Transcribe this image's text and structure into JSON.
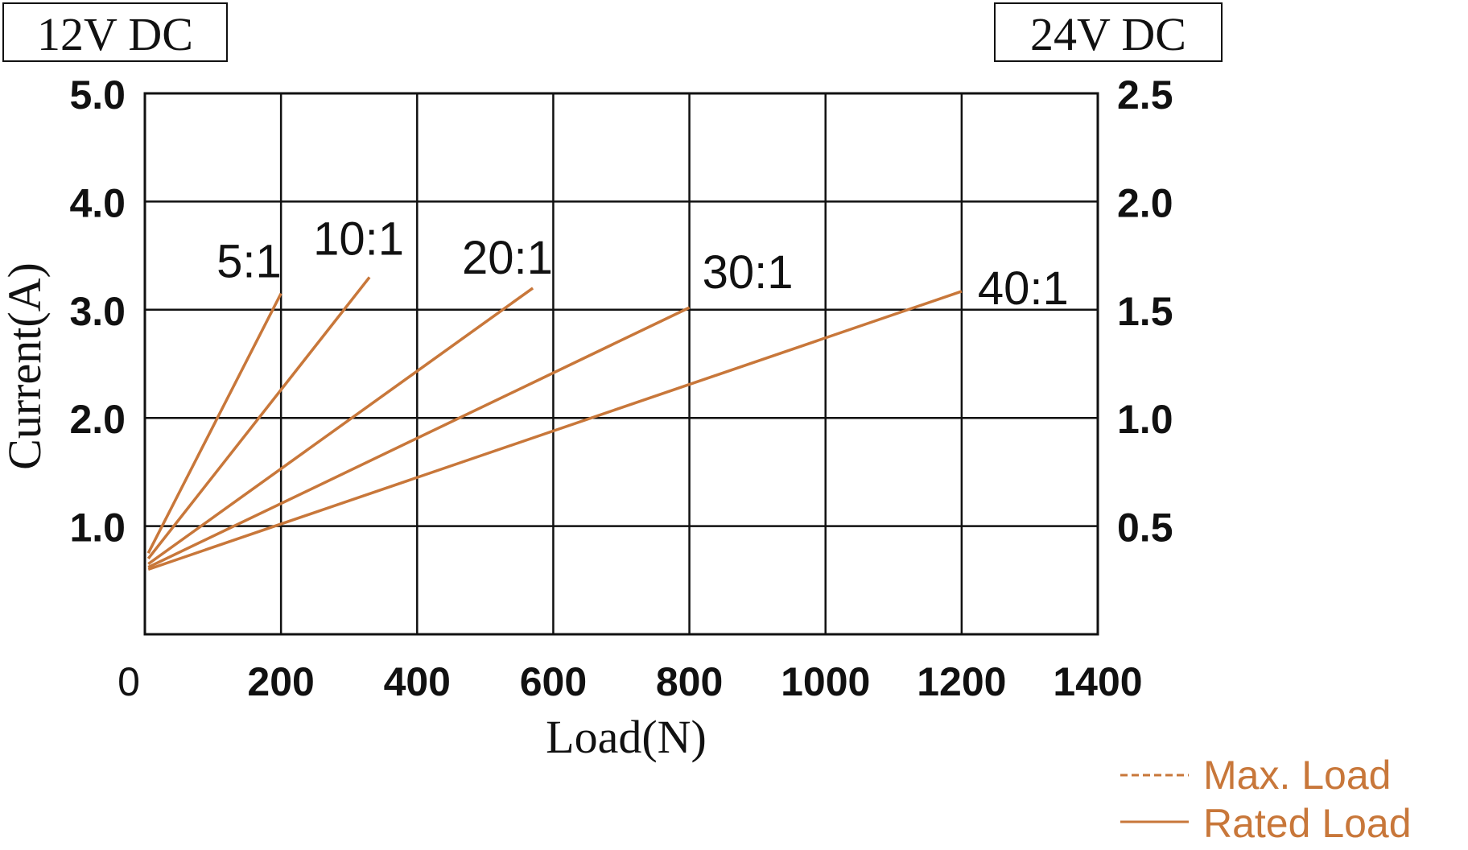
{
  "colors": {
    "accent": "#c8773a",
    "grid": "#111111"
  },
  "header": {
    "left_voltage": "12V DC",
    "right_voltage": "24V DC"
  },
  "chart_data": {
    "type": "line",
    "xlabel": "Load(N)",
    "ylabel": "Current(A)",
    "xlim": [
      0,
      1400
    ],
    "ylim": [
      0,
      5.0
    ],
    "y2lim": [
      0,
      2.5
    ],
    "x_ticks": [
      "0",
      "200",
      "400",
      "600",
      "800",
      "1000",
      "1200",
      "1400"
    ],
    "y_ticks": [
      "1.0",
      "2.0",
      "3.0",
      "4.0",
      "5.0"
    ],
    "y2_ticks": [
      "0.5",
      "1.0",
      "1.5",
      "2.0",
      "2.5"
    ],
    "grid": true,
    "series": [
      {
        "name": "5:1",
        "x": [
          5,
          200
        ],
        "y": [
          0.75,
          3.15
        ]
      },
      {
        "name": "10:1",
        "x": [
          5,
          330
        ],
        "y": [
          0.7,
          3.3
        ]
      },
      {
        "name": "20:1",
        "x": [
          5,
          570
        ],
        "y": [
          0.65,
          3.2
        ]
      },
      {
        "name": "30:1",
        "x": [
          5,
          800
        ],
        "y": [
          0.62,
          3.02
        ]
      },
      {
        "name": "40:1",
        "x": [
          5,
          1200
        ],
        "y": [
          0.6,
          3.17
        ]
      }
    ],
    "legend": [
      {
        "label": "Max. Load",
        "style": "dashed"
      },
      {
        "label": "Rated Load",
        "style": "solid"
      }
    ],
    "legend_position": "bottom-right"
  }
}
